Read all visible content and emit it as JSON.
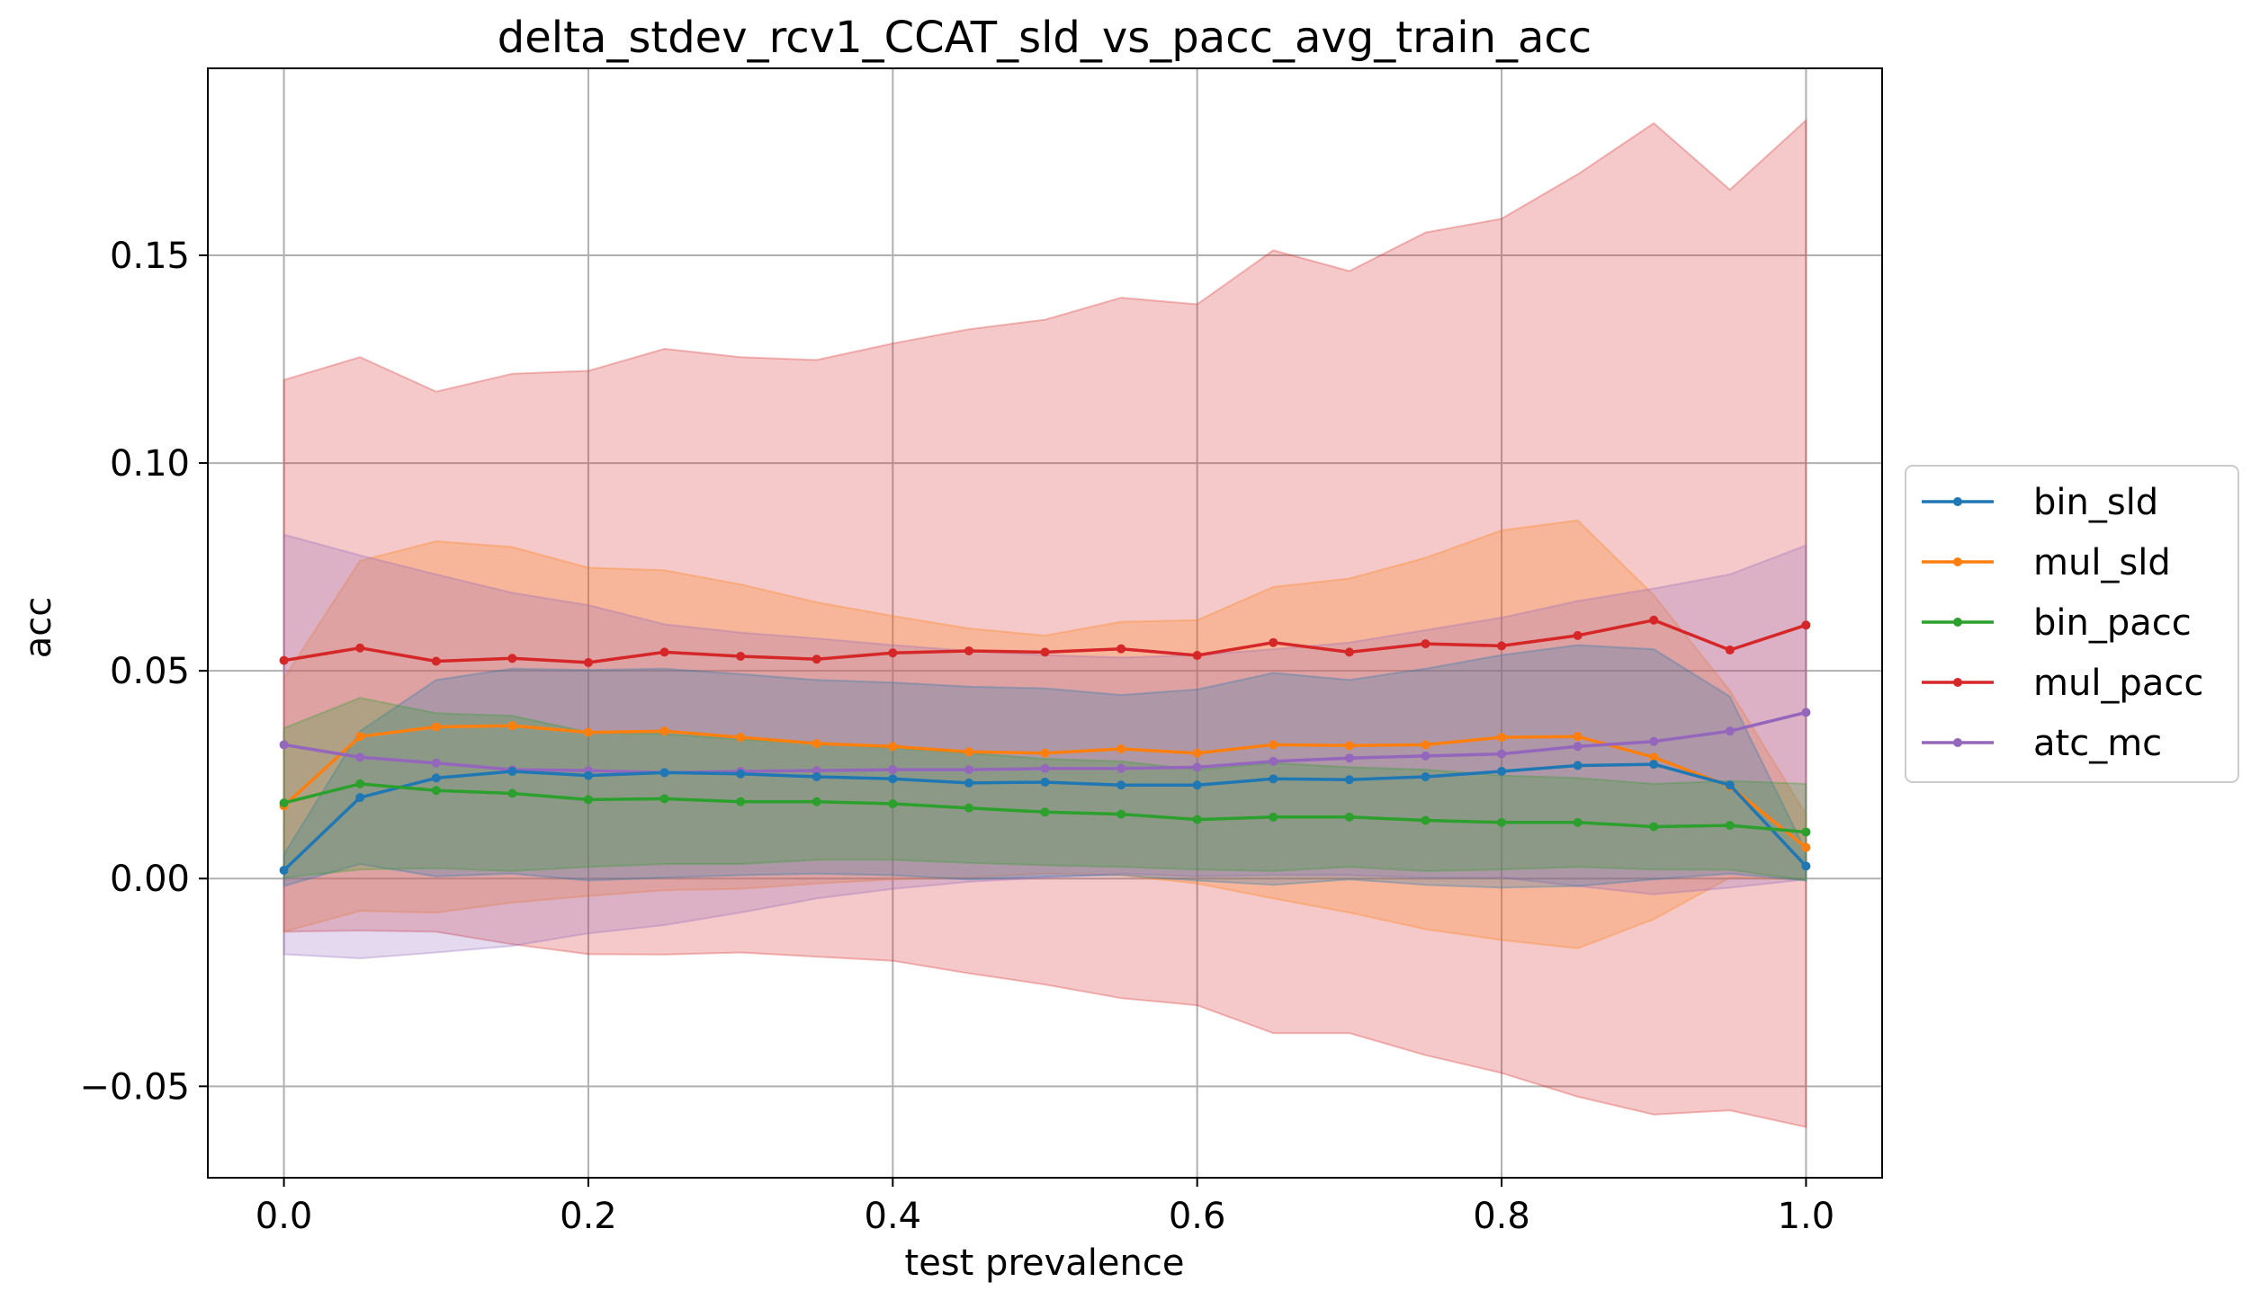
{
  "chart_data": {
    "type": "line",
    "title": "delta_stdev_rcv1_CCAT_sld_vs_pacc_avg_train_acc",
    "xlabel": "test prevalence",
    "ylabel": "acc",
    "xlim": [
      -0.05,
      1.05
    ],
    "ylim": [
      -0.072,
      0.195
    ],
    "xticks": [
      0.0,
      0.2,
      0.4,
      0.6,
      0.8,
      1.0
    ],
    "xtick_labels": [
      "0.0",
      "0.2",
      "0.4",
      "0.6",
      "0.8",
      "1.0"
    ],
    "yticks": [
      -0.05,
      0.0,
      0.05,
      0.1,
      0.15
    ],
    "ytick_labels": [
      "−0.05",
      "0.00",
      "0.05",
      "0.10",
      "0.15"
    ],
    "grid": true,
    "legend_position": "right-outside",
    "x": [
      0.0,
      0.05,
      0.1,
      0.15,
      0.2,
      0.25,
      0.3,
      0.35,
      0.4,
      0.45,
      0.5,
      0.55,
      0.6,
      0.65,
      0.7,
      0.75,
      0.8,
      0.85,
      0.9,
      0.95,
      1.0
    ],
    "series": [
      {
        "name": "mul_pacc",
        "color": "#d62728",
        "values": [
          0.0525,
          0.0555,
          0.0523,
          0.053,
          0.052,
          0.0545,
          0.0535,
          0.0528,
          0.0543,
          0.0548,
          0.0545,
          0.0553,
          0.0537,
          0.0568,
          0.0545,
          0.0565,
          0.056,
          0.0585,
          0.0622,
          0.055,
          0.061
        ],
        "upper": [
          0.12,
          0.1255,
          0.1172,
          0.1215,
          0.1222,
          0.1275,
          0.1255,
          0.1248,
          0.1288,
          0.1322,
          0.1345,
          0.1398,
          0.1382,
          0.1512,
          0.1462,
          0.1555,
          0.1588,
          0.1695,
          0.1818,
          0.1658,
          0.1825
        ],
        "lower": [
          -0.0128,
          -0.0125,
          -0.0128,
          -0.0158,
          -0.0182,
          -0.0183,
          -0.0178,
          -0.0188,
          -0.0198,
          -0.0228,
          -0.0255,
          -0.0288,
          -0.0305,
          -0.0372,
          -0.0372,
          -0.0425,
          -0.0468,
          -0.0525,
          -0.0568,
          -0.0558,
          -0.0598
        ]
      },
      {
        "name": "mul_sld",
        "color": "#ff7f0e",
        "values": [
          0.0175,
          0.0342,
          0.0365,
          0.0368,
          0.0352,
          0.0355,
          0.034,
          0.0325,
          0.0318,
          0.0305,
          0.0302,
          0.0312,
          0.0302,
          0.0322,
          0.032,
          0.0322,
          0.034,
          0.0342,
          0.0292,
          0.0222,
          0.0075
        ],
        "upper": [
          0.0482,
          0.0765,
          0.0812,
          0.0798,
          0.0748,
          0.0742,
          0.0708,
          0.0665,
          0.0632,
          0.0602,
          0.0585,
          0.0618,
          0.0622,
          0.0702,
          0.0722,
          0.0772,
          0.0838,
          0.0862,
          0.0682,
          0.0452,
          0.0155
        ],
        "lower": [
          -0.0128,
          -0.0078,
          -0.0082,
          -0.0058,
          -0.0042,
          -0.0028,
          -0.0025,
          -0.0012,
          -0.0002,
          0.0002,
          0.0012,
          0.0008,
          -0.0012,
          -0.0048,
          -0.0082,
          -0.0122,
          -0.0148,
          -0.0168,
          -0.0098,
          0.0002,
          -0.0002
        ]
      },
      {
        "name": "atc_mc",
        "color": "#9467bd",
        "values": [
          0.0322,
          0.0292,
          0.0278,
          0.0262,
          0.026,
          0.0255,
          0.0258,
          0.026,
          0.0262,
          0.0262,
          0.0265,
          0.0265,
          0.0268,
          0.0282,
          0.029,
          0.0295,
          0.03,
          0.0318,
          0.033,
          0.0355,
          0.04
        ],
        "upper": [
          0.0828,
          0.0778,
          0.0732,
          0.0688,
          0.0658,
          0.0612,
          0.0592,
          0.0578,
          0.0562,
          0.0548,
          0.0538,
          0.0532,
          0.0538,
          0.0552,
          0.0568,
          0.0598,
          0.0628,
          0.0668,
          0.0698,
          0.0732,
          0.0802
        ],
        "lower": [
          -0.0182,
          -0.0192,
          -0.0178,
          -0.0162,
          -0.0132,
          -0.0112,
          -0.0082,
          -0.0048,
          -0.0025,
          -0.0008,
          0.0002,
          0.0012,
          0.0005,
          0.0008,
          0.0008,
          0.0002,
          0.0002,
          -0.0018,
          -0.0038,
          -0.0022,
          -0.0002
        ]
      },
      {
        "name": "bin_sld",
        "color": "#1f77b4",
        "values": [
          0.002,
          0.0195,
          0.0242,
          0.0258,
          0.0248,
          0.0255,
          0.0252,
          0.0245,
          0.024,
          0.023,
          0.0232,
          0.0225,
          0.0225,
          0.024,
          0.0238,
          0.0245,
          0.0258,
          0.0272,
          0.0275,
          0.0225,
          0.003
        ],
        "upper": [
          0.0058,
          0.0355,
          0.0478,
          0.0505,
          0.0502,
          0.0505,
          0.0492,
          0.0478,
          0.0472,
          0.0462,
          0.0458,
          0.0442,
          0.0455,
          0.0495,
          0.0478,
          0.0505,
          0.0538,
          0.0562,
          0.0552,
          0.0438,
          0.0065
        ],
        "lower": [
          -0.0018,
          0.0035,
          0.0005,
          0.0012,
          -0.0005,
          0.0002,
          0.0008,
          0.0012,
          0.0008,
          -0.0002,
          0.0005,
          0.0008,
          -0.0005,
          -0.0015,
          -0.0002,
          -0.0015,
          -0.0022,
          -0.0018,
          -0.0002,
          0.0012,
          -0.0005
        ]
      },
      {
        "name": "bin_pacc",
        "color": "#2ca02c",
        "values": [
          0.0182,
          0.0228,
          0.0212,
          0.0205,
          0.019,
          0.0192,
          0.0185,
          0.0185,
          0.018,
          0.017,
          0.016,
          0.0155,
          0.0142,
          0.0148,
          0.0148,
          0.014,
          0.0135,
          0.0135,
          0.0125,
          0.0128,
          0.0112
        ],
        "upper": [
          0.0362,
          0.0435,
          0.0398,
          0.0392,
          0.0352,
          0.0348,
          0.0335,
          0.0325,
          0.0315,
          0.0302,
          0.0288,
          0.0282,
          0.0262,
          0.0278,
          0.0268,
          0.0262,
          0.0248,
          0.0242,
          0.0228,
          0.0235,
          0.0228
        ],
        "lower": [
          0.0002,
          0.0022,
          0.0025,
          0.0018,
          0.0028,
          0.0035,
          0.0035,
          0.0045,
          0.0045,
          0.0038,
          0.0032,
          0.0028,
          0.0022,
          0.0018,
          0.0028,
          0.0018,
          0.0022,
          0.0028,
          0.0022,
          0.0021,
          -0.0004
        ]
      }
    ],
    "legend_order": [
      "bin_sld",
      "mul_sld",
      "bin_pacc",
      "mul_pacc",
      "atc_mc"
    ]
  }
}
